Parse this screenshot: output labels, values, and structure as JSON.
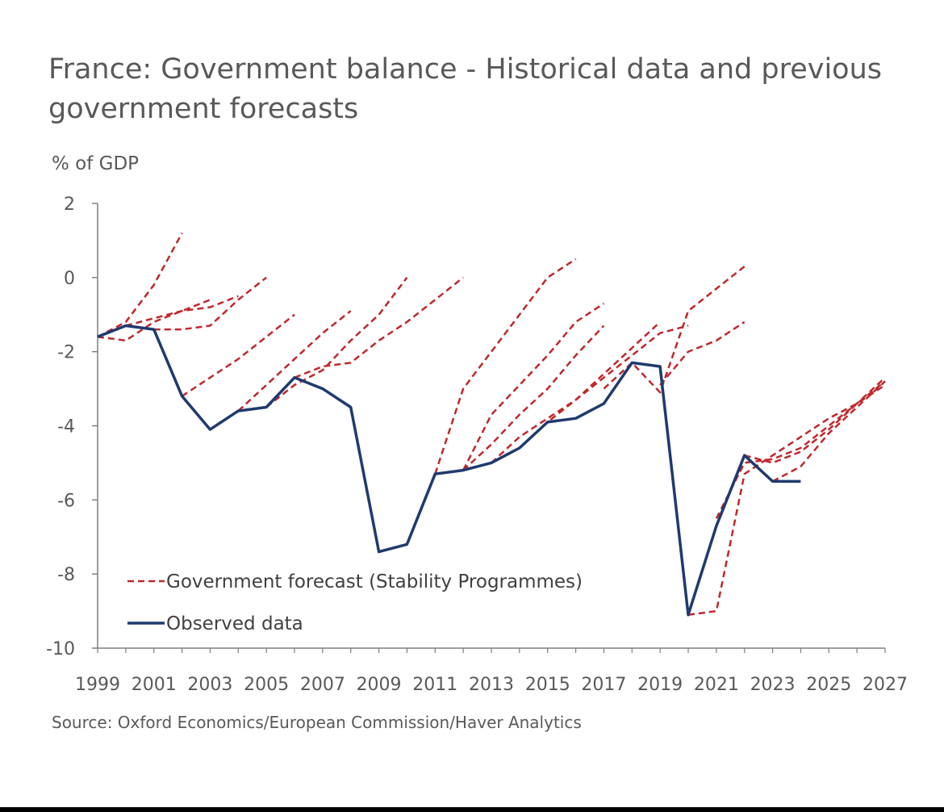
{
  "chart_data": {
    "type": "line",
    "title": "France: Government balance - Historical data and previous government forecasts",
    "ylabel": "% of GDP",
    "xlabel": "",
    "source": "Source: Oxford Economics/European Commission/Haver Analytics",
    "xlim": [
      1999,
      2027
    ],
    "ylim": [
      -10,
      2
    ],
    "x_ticks": [
      "1999",
      "2001",
      "2003",
      "2005",
      "2007",
      "2009",
      "2011",
      "2013",
      "2015",
      "2017",
      "2019",
      "2021",
      "2023",
      "2025",
      "2027"
    ],
    "y_ticks": [
      "2",
      "0",
      "-2",
      "-4",
      "-6",
      "-8",
      "-10"
    ],
    "grid": false,
    "legend": {
      "placement": "bottom-left",
      "entries": [
        {
          "label": "Government forecast (Stability Programmes)",
          "style": "dashed",
          "color": "#c0282c"
        },
        {
          "label": "Observed data",
          "style": "solid",
          "color": "#1f3a6e"
        }
      ]
    },
    "observed": {
      "name": "Observed data",
      "color": "#1f3a6e",
      "points": [
        [
          1999,
          -1.6
        ],
        [
          2000,
          -1.3
        ],
        [
          2001,
          -1.4
        ],
        [
          2002,
          -3.2
        ],
        [
          2003,
          -4.1
        ],
        [
          2004,
          -3.6
        ],
        [
          2005,
          -3.5
        ],
        [
          2006,
          -2.7
        ],
        [
          2007,
          -3.0
        ],
        [
          2008,
          -3.5
        ],
        [
          2009,
          -7.4
        ],
        [
          2010,
          -7.2
        ],
        [
          2011,
          -5.3
        ],
        [
          2012,
          -5.2
        ],
        [
          2013,
          -5.0
        ],
        [
          2014,
          -4.6
        ],
        [
          2015,
          -3.9
        ],
        [
          2016,
          -3.8
        ],
        [
          2017,
          -3.4
        ],
        [
          2018,
          -2.3
        ],
        [
          2019,
          -2.4
        ],
        [
          2020,
          -9.1
        ],
        [
          2021,
          -6.7
        ],
        [
          2022,
          -4.8
        ],
        [
          2023,
          -5.5
        ],
        [
          2024,
          -5.5
        ]
      ]
    },
    "forecasts": {
      "name": "Government forecast (Stability Programmes)",
      "color": "#c0282c",
      "lines": [
        [
          [
            1999,
            -1.6
          ],
          [
            2000,
            -1.2
          ],
          [
            2001,
            -0.2
          ],
          [
            2002,
            1.2
          ]
        ],
        [
          [
            1999,
            -1.6
          ],
          [
            2000,
            -1.7
          ],
          [
            2001,
            -1.2
          ],
          [
            2002,
            -0.9
          ],
          [
            2003,
            -0.6
          ]
        ],
        [
          [
            2000,
            -1.3
          ],
          [
            2001,
            -1.1
          ],
          [
            2002,
            -0.9
          ],
          [
            2003,
            -0.8
          ],
          [
            2004,
            -0.5
          ]
        ],
        [
          [
            2001,
            -1.4
          ],
          [
            2002,
            -1.4
          ],
          [
            2003,
            -1.3
          ],
          [
            2004,
            -0.6
          ],
          [
            2005,
            0.0
          ]
        ],
        [
          [
            2002,
            -3.2
          ],
          [
            2003,
            -2.7
          ],
          [
            2004,
            -2.2
          ],
          [
            2005,
            -1.6
          ],
          [
            2006,
            -1.0
          ]
        ],
        [
          [
            2004,
            -3.6
          ],
          [
            2005,
            -2.9
          ],
          [
            2006,
            -2.2
          ],
          [
            2007,
            -1.5
          ],
          [
            2008,
            -0.9
          ]
        ],
        [
          [
            2005,
            -3.5
          ],
          [
            2006,
            -2.9
          ],
          [
            2007,
            -2.5
          ],
          [
            2008,
            -1.7
          ],
          [
            2009,
            -1.0
          ],
          [
            2010,
            0.0
          ]
        ],
        [
          [
            2006,
            -2.7
          ],
          [
            2007,
            -2.4
          ],
          [
            2008,
            -2.3
          ],
          [
            2009,
            -1.7
          ],
          [
            2010,
            -1.2
          ],
          [
            2011,
            -0.6
          ],
          [
            2012,
            0.0
          ]
        ],
        [
          [
            2011,
            -5.3
          ],
          [
            2012,
            -3.0
          ],
          [
            2013,
            -2.0
          ],
          [
            2014,
            -1.0
          ],
          [
            2015,
            0.0
          ],
          [
            2016,
            0.5
          ]
        ],
        [
          [
            2012,
            -5.2
          ],
          [
            2013,
            -3.7
          ],
          [
            2014,
            -2.9
          ],
          [
            2015,
            -2.1
          ],
          [
            2016,
            -1.2
          ],
          [
            2017,
            -0.7
          ]
        ],
        [
          [
            2012,
            -5.2
          ],
          [
            2013,
            -4.5
          ],
          [
            2014,
            -3.7
          ],
          [
            2015,
            -3.0
          ],
          [
            2016,
            -2.1
          ],
          [
            2017,
            -1.3
          ]
        ],
        [
          [
            2013,
            -5.0
          ],
          [
            2014,
            -4.3
          ],
          [
            2015,
            -3.8
          ],
          [
            2016,
            -3.3
          ],
          [
            2017,
            -2.6
          ],
          [
            2018,
            -1.9
          ],
          [
            2019,
            -1.2
          ]
        ],
        [
          [
            2014,
            -4.6
          ],
          [
            2015,
            -3.9
          ],
          [
            2016,
            -3.3
          ],
          [
            2017,
            -2.7
          ],
          [
            2018,
            -2.1
          ],
          [
            2019,
            -1.5
          ],
          [
            2020,
            -1.3
          ]
        ],
        [
          [
            2017,
            -3.0
          ],
          [
            2018,
            -2.3
          ],
          [
            2019,
            -3.1
          ],
          [
            2020,
            -0.9
          ],
          [
            2021,
            -0.3
          ],
          [
            2022,
            0.3
          ]
        ],
        [
          [
            2019,
            -2.9
          ],
          [
            2020,
            -2.0
          ],
          [
            2021,
            -1.7
          ],
          [
            2022,
            -1.2
          ]
        ],
        [
          [
            2020,
            -9.1
          ],
          [
            2021,
            -9.0
          ],
          [
            2022,
            -5.3
          ],
          [
            2023,
            -4.8
          ],
          [
            2024,
            -4.3
          ],
          [
            2025,
            -3.8
          ],
          [
            2026,
            -3.4
          ],
          [
            2027,
            -2.8
          ]
        ],
        [
          [
            2021,
            -6.5
          ],
          [
            2022,
            -5.0
          ],
          [
            2023,
            -4.9
          ],
          [
            2024,
            -4.6
          ],
          [
            2025,
            -4.0
          ],
          [
            2026,
            -3.4
          ],
          [
            2027,
            -2.7
          ]
        ],
        [
          [
            2022,
            -4.8
          ],
          [
            2023,
            -5.0
          ],
          [
            2024,
            -4.7
          ],
          [
            2025,
            -4.1
          ],
          [
            2026,
            -3.4
          ],
          [
            2027,
            -2.9
          ]
        ],
        [
          [
            2023,
            -5.5
          ],
          [
            2024,
            -5.1
          ],
          [
            2025,
            -4.2
          ],
          [
            2026,
            -3.5
          ],
          [
            2027,
            -2.8
          ]
        ]
      ]
    }
  }
}
